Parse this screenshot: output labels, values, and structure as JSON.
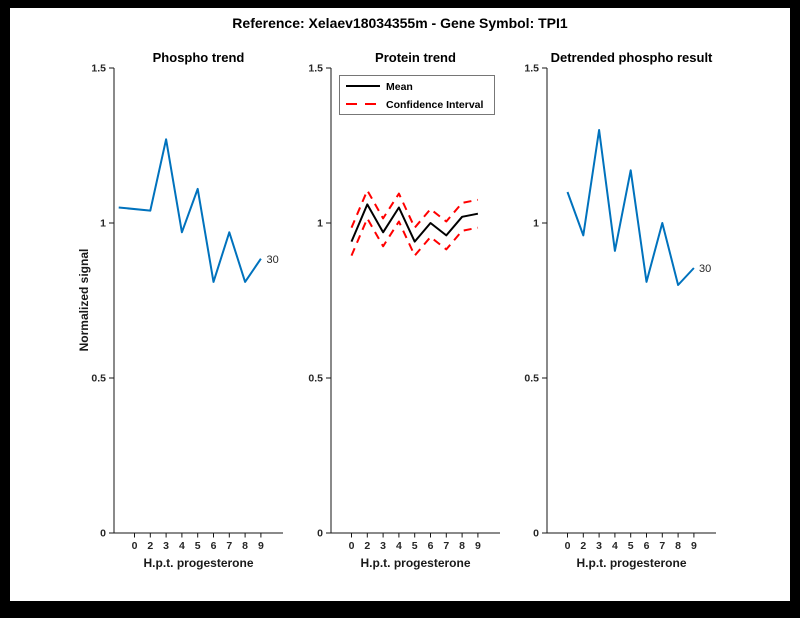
{
  "figure": {
    "title": "Reference:  Xelaev18034355m - Gene Symbol:  TPI1",
    "border_color": "#000000",
    "paper_color": "#ffffff"
  },
  "palette": {
    "line_blue": "#0072BD",
    "ci_red": "#FF0000",
    "mean_black": "#000000",
    "tick_text": "#262626"
  },
  "chart_data": [
    {
      "type": "line",
      "title": "Phospho trend",
      "xlabel": "H.p.t. progesterone",
      "ylabel": "Normalized signal",
      "hours": [
        0,
        2,
        3,
        4,
        5,
        6,
        7,
        8,
        9
      ],
      "xticklabels": [
        "0",
        "2",
        "3",
        "4",
        "5",
        "6",
        "7",
        "8",
        "9"
      ],
      "ylim": [
        0,
        1.5
      ],
      "yticks": [
        0,
        0.5,
        1,
        1.5
      ],
      "ytick_labels": [
        "0",
        "0.5",
        "1",
        "1.5"
      ],
      "grid": false,
      "annotation": {
        "text": "30"
      },
      "series": [
        {
          "name": "phospho-signal-line",
          "color": "#0072BD",
          "width": 2,
          "dash": null,
          "x": [
            0,
            2,
            3,
            4,
            5,
            6,
            7,
            8,
            9
          ],
          "values": [
            1.05,
            1.04,
            1.27,
            0.97,
            1.11,
            0.81,
            0.97,
            0.81,
            0.885
          ]
        }
      ]
    },
    {
      "type": "line",
      "title": "Protein trend",
      "xlabel": "H.p.t. progesterone",
      "hours": [
        0,
        2,
        3,
        4,
        5,
        6,
        7,
        8,
        9
      ],
      "xticklabels": [
        "0",
        "2",
        "3",
        "4",
        "5",
        "6",
        "7",
        "8",
        "9"
      ],
      "ylim": [
        0,
        1.5
      ],
      "yticks": [
        0,
        0.5,
        1,
        1.5
      ],
      "ytick_labels": [
        "0",
        "0.5",
        "1",
        "1.5"
      ],
      "grid": false,
      "legend_position": "upper-left",
      "legend": [
        {
          "label": "Mean",
          "color": "#000000",
          "dash": null
        },
        {
          "label": "Confidence Interval",
          "color": "#FF0000",
          "dash": "11 8"
        }
      ],
      "series": [
        {
          "name": "protein-mean-line",
          "color": "#000000",
          "width": 2,
          "dash": null,
          "x": [
            1,
            2,
            3,
            4,
            5,
            6,
            7,
            8,
            9
          ],
          "values": [
            0.94,
            1.06,
            0.97,
            1.05,
            0.94,
            1.0,
            0.96,
            1.02,
            1.03
          ]
        },
        {
          "name": "confidence-upper-line",
          "color": "#FF0000",
          "width": 2,
          "dash": "8 6",
          "x": [
            1,
            2,
            3,
            4,
            5,
            6,
            7,
            8,
            9
          ],
          "values": [
            0.985,
            1.105,
            1.015,
            1.095,
            0.985,
            1.045,
            1.005,
            1.065,
            1.075
          ]
        },
        {
          "name": "confidence-lower-line",
          "color": "#FF0000",
          "width": 2,
          "dash": "8 6",
          "x": [
            1,
            2,
            3,
            4,
            5,
            6,
            7,
            8,
            9
          ],
          "values": [
            0.895,
            1.015,
            0.925,
            1.005,
            0.895,
            0.955,
            0.915,
            0.975,
            0.985
          ]
        }
      ]
    },
    {
      "type": "line",
      "title": "Detrended phospho result",
      "xlabel": "H.p.t. progesterone",
      "hours": [
        0,
        2,
        3,
        4,
        5,
        6,
        7,
        8,
        9
      ],
      "xticklabels": [
        "0",
        "2",
        "3",
        "4",
        "5",
        "6",
        "7",
        "8",
        "9"
      ],
      "ylim": [
        0,
        1.5
      ],
      "yticks": [
        0,
        0.5,
        1,
        1.5
      ],
      "ytick_labels": [
        "0",
        "0.5",
        "1",
        "1.5"
      ],
      "grid": false,
      "annotation": {
        "text": "30"
      },
      "series": [
        {
          "name": "detrended-phospho-line",
          "color": "#0072BD",
          "width": 2,
          "dash": null,
          "x": [
            1,
            2,
            3,
            4,
            5,
            6,
            7,
            8,
            9
          ],
          "values": [
            1.1,
            0.96,
            1.3,
            0.91,
            1.17,
            0.81,
            1.0,
            0.8,
            0.855
          ]
        }
      ]
    }
  ]
}
